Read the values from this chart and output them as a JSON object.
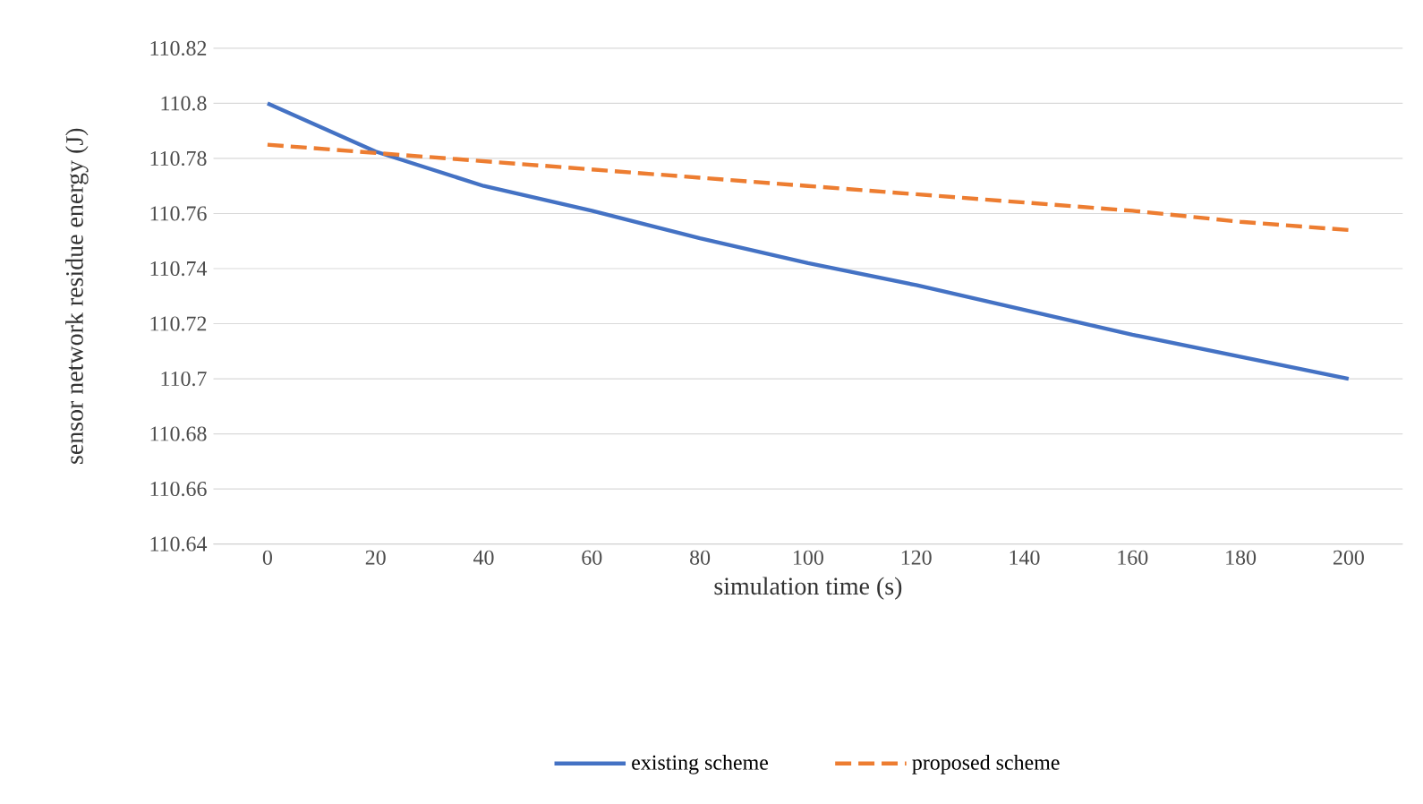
{
  "chart_data": {
    "type": "line",
    "xlabel": "simulation time (s)",
    "ylabel": "sensor network residue energy (J)",
    "categories": [
      "0",
      "20",
      "40",
      "60",
      "80",
      "100",
      "120",
      "140",
      "160",
      "180",
      "200"
    ],
    "ylim": [
      110.64,
      110.82
    ],
    "yticks": [
      110.64,
      110.66,
      110.68,
      110.7,
      110.72,
      110.74,
      110.76,
      110.78,
      110.8,
      110.82
    ],
    "grid": "y",
    "legend": "bottom",
    "marker": "none",
    "series": [
      {
        "name": "existing scheme",
        "color": "#4472c4",
        "line_style": "solid",
        "values": [
          110.8,
          110.7825,
          110.77,
          110.761,
          110.751,
          110.742,
          110.734,
          110.725,
          110.716,
          110.708,
          110.7
        ]
      },
      {
        "name": "proposed scheme",
        "color": "#ed7d31",
        "line_style": "dashed",
        "values": [
          110.785,
          110.782,
          110.779,
          110.776,
          110.773,
          110.77,
          110.767,
          110.764,
          110.761,
          110.757,
          110.754
        ]
      }
    ]
  }
}
